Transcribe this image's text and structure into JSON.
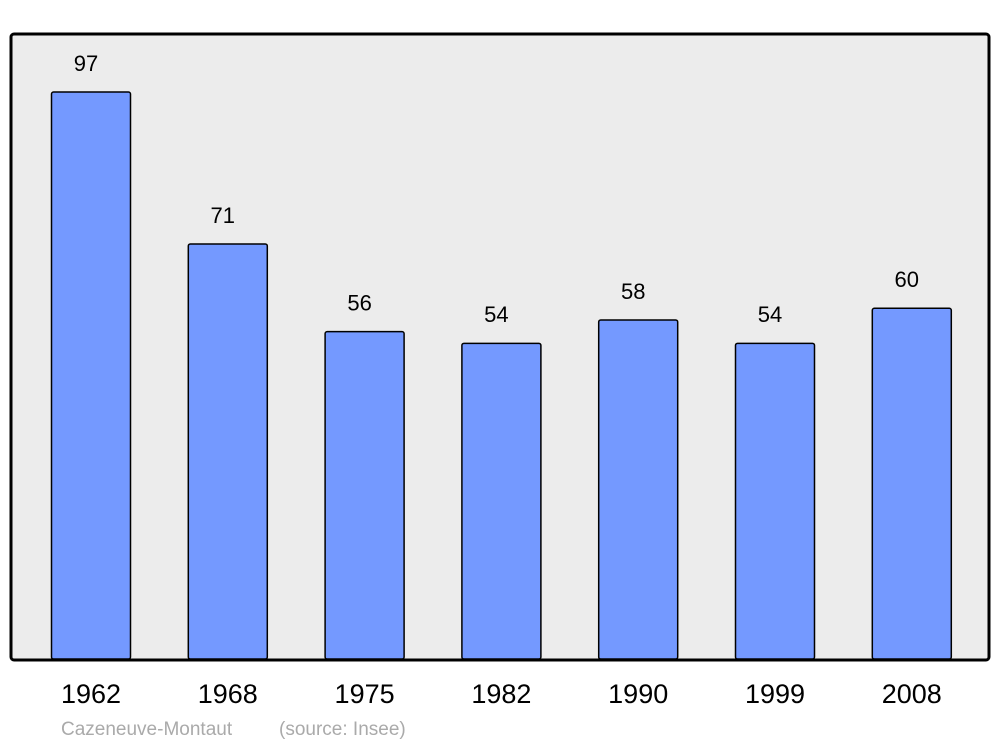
{
  "chart_data": {
    "type": "bar",
    "title": "Cazeneuve-Montaut",
    "source": "(source: Insee)",
    "categories": [
      "1962",
      "1968",
      "1975",
      "1982",
      "1990",
      "1999",
      "2008"
    ],
    "values": [
      97,
      71,
      56,
      54,
      58,
      54,
      60
    ],
    "color": "#7499ff"
  }
}
